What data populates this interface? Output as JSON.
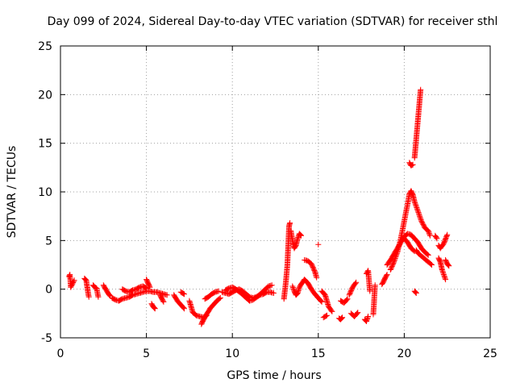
{
  "chart_data": {
    "type": "scatter",
    "title": "Day 099 of 2024, Sidereal Day-to-day VTEC variation (SDTVAR) for receiver sthl",
    "xlabel": "GPS time / hours",
    "ylabel": "SDTVAR / TECUs",
    "xlim": [
      0,
      25
    ],
    "ylim": [
      -5,
      25
    ],
    "xticks": [
      "0",
      "5",
      "10",
      "15",
      "20",
      "25"
    ],
    "yticks": [
      "-5",
      "0",
      "5",
      "10",
      "15",
      "20",
      "25"
    ],
    "grid": true,
    "marker": "plus",
    "color": "#ff0000",
    "series": [
      {
        "name": "SDTVAR",
        "segments": [
          [
            [
              0.5,
              1.3
            ],
            [
              0.55,
              1.5
            ],
            [
              0.6,
              0.2
            ],
            [
              0.8,
              0.9
            ]
          ],
          [
            [
              1.4,
              1.1
            ],
            [
              1.5,
              0.9
            ],
            [
              1.55,
              0.3
            ],
            [
              1.6,
              -0.3
            ],
            [
              1.65,
              -0.8
            ]
          ],
          [
            [
              1.9,
              0.4
            ],
            [
              2.0,
              0.2
            ],
            [
              2.1,
              0.1
            ],
            [
              2.2,
              -0.8
            ]
          ],
          [
            [
              2.5,
              0.4
            ],
            [
              2.6,
              0.1
            ],
            [
              2.7,
              -0.2
            ],
            [
              2.8,
              -0.5
            ],
            [
              2.9,
              -0.7
            ]
          ],
          [
            [
              3.0,
              -0.9
            ],
            [
              3.2,
              -1.1
            ],
            [
              3.4,
              -1.2
            ],
            [
              3.6,
              -1.0
            ],
            [
              3.8,
              -0.9
            ],
            [
              4.0,
              -0.8
            ],
            [
              4.2,
              -0.6
            ],
            [
              4.4,
              -0.5
            ],
            [
              4.6,
              -0.4
            ],
            [
              4.8,
              -0.3
            ],
            [
              5.0,
              -0.2
            ],
            [
              5.2,
              -0.2
            ],
            [
              5.4,
              -0.3
            ],
            [
              5.6,
              -0.3
            ],
            [
              5.8,
              -0.4
            ],
            [
              6.0,
              -0.5
            ],
            [
              6.2,
              -0.6
            ]
          ],
          [
            [
              3.6,
              0.0
            ],
            [
              3.8,
              -0.2
            ],
            [
              4.0,
              -0.3
            ],
            [
              4.2,
              -0.1
            ],
            [
              4.4,
              0.0
            ],
            [
              4.6,
              0.2
            ],
            [
              4.8,
              0.3
            ],
            [
              5.0,
              0.1
            ]
          ],
          [
            [
              5.0,
              1.0
            ],
            [
              5.1,
              0.6
            ],
            [
              5.2,
              0.2
            ]
          ],
          [
            [
              5.3,
              -1.5
            ],
            [
              5.4,
              -1.8
            ],
            [
              5.5,
              -2.0
            ]
          ],
          [
            [
              5.8,
              -0.6
            ],
            [
              5.9,
              -1.0
            ],
            [
              6.0,
              -1.3
            ]
          ],
          [
            [
              6.6,
              -0.6
            ],
            [
              6.8,
              -1.2
            ],
            [
              7.0,
              -1.6
            ],
            [
              7.2,
              -2.0
            ]
          ],
          [
            [
              7.0,
              -0.3
            ],
            [
              7.2,
              -0.5
            ]
          ],
          [
            [
              7.5,
              -1.2
            ],
            [
              7.7,
              -2.4
            ],
            [
              7.9,
              -2.7
            ],
            [
              8.1,
              -2.8
            ],
            [
              8.3,
              -2.9
            ],
            [
              8.5,
              -2.7
            ]
          ],
          [
            [
              8.2,
              -3.6
            ],
            [
              8.3,
              -3.2
            ],
            [
              8.5,
              -2.6
            ],
            [
              8.7,
              -2.0
            ],
            [
              8.9,
              -1.6
            ],
            [
              9.1,
              -1.2
            ],
            [
              9.3,
              -0.9
            ]
          ],
          [
            [
              8.4,
              -1.0
            ],
            [
              8.6,
              -0.8
            ],
            [
              8.8,
              -0.5
            ],
            [
              9.0,
              -0.3
            ],
            [
              9.2,
              -0.2
            ]
          ],
          [
            [
              9.4,
              -0.3
            ],
            [
              9.6,
              -0.4
            ],
            [
              9.8,
              -0.5
            ],
            [
              10.0,
              -0.3
            ],
            [
              10.2,
              -0.1
            ],
            [
              10.4,
              0.0
            ],
            [
              10.6,
              -0.2
            ],
            [
              10.8,
              -0.5
            ],
            [
              11.0,
              -0.8
            ],
            [
              11.2,
              -0.9
            ],
            [
              11.4,
              -0.8
            ],
            [
              11.6,
              -0.6
            ],
            [
              11.8,
              -0.5
            ],
            [
              12.0,
              -0.3
            ],
            [
              12.2,
              -0.3
            ],
            [
              12.4,
              -0.4
            ]
          ],
          [
            [
              9.6,
              -0.1
            ],
            [
              9.8,
              0.1
            ],
            [
              10.0,
              0.2
            ],
            [
              10.2,
              0.0
            ],
            [
              10.5,
              -0.4
            ],
            [
              10.8,
              -0.9
            ],
            [
              11.0,
              -1.2
            ],
            [
              11.2,
              -1.1
            ],
            [
              11.5,
              -0.7
            ],
            [
              11.8,
              -0.2
            ],
            [
              12.1,
              0.3
            ],
            [
              12.3,
              0.4
            ]
          ],
          [
            [
              13.0,
              -1.0
            ],
            [
              13.1,
              0.5
            ],
            [
              13.2,
              2.5
            ],
            [
              13.25,
              4.5
            ],
            [
              13.3,
              6.5
            ],
            [
              13.35,
              6.8
            ]
          ],
          [
            [
              13.4,
              6.0
            ],
            [
              13.5,
              5.0
            ],
            [
              13.6,
              4.2
            ],
            [
              13.7,
              4.5
            ],
            [
              13.8,
              5.2
            ],
            [
              13.9,
              5.7
            ],
            [
              14.0,
              5.5
            ]
          ],
          [
            [
              13.5,
              0.3
            ],
            [
              13.6,
              -0.2
            ],
            [
              13.7,
              -0.6
            ],
            [
              13.8,
              -0.4
            ],
            [
              13.9,
              0.2
            ],
            [
              14.0,
              0.5
            ],
            [
              14.2,
              1.0
            ],
            [
              14.4,
              0.6
            ],
            [
              14.6,
              0.0
            ],
            [
              14.8,
              -0.5
            ],
            [
              15.0,
              -0.9
            ],
            [
              15.2,
              -1.3
            ]
          ],
          [
            [
              14.2,
              3.0
            ],
            [
              14.4,
              2.9
            ],
            [
              14.6,
              2.6
            ],
            [
              14.8,
              1.8
            ],
            [
              14.9,
              1.2
            ]
          ],
          [
            [
              15.0,
              4.6
            ]
          ],
          [
            [
              15.2,
              -0.2
            ],
            [
              15.4,
              -0.6
            ],
            [
              15.5,
              -1.2
            ],
            [
              15.6,
              -1.8
            ],
            [
              15.8,
              -2.3
            ]
          ],
          [
            [
              15.3,
              -2.9
            ],
            [
              15.5,
              -2.7
            ]
          ],
          [
            [
              16.2,
              -3.0
            ],
            [
              16.3,
              -3.1
            ],
            [
              16.4,
              -2.9
            ]
          ],
          [
            [
              16.3,
              -1.2
            ],
            [
              16.5,
              -1.4
            ],
            [
              16.7,
              -1.0
            ]
          ],
          [
            [
              16.8,
              -0.6
            ],
            [
              17.0,
              0.2
            ],
            [
              17.2,
              0.7
            ]
          ],
          [
            [
              16.9,
              -2.5
            ],
            [
              17.1,
              -2.8
            ],
            [
              17.3,
              -2.4
            ]
          ],
          [
            [
              17.7,
              -3.1
            ],
            [
              17.8,
              -3.3
            ],
            [
              17.9,
              -2.8
            ]
          ],
          [
            [
              17.8,
              1.6
            ],
            [
              17.9,
              1.9
            ],
            [
              18.0,
              -0.2
            ]
          ],
          [
            [
              18.2,
              -2.6
            ],
            [
              18.3,
              0.4
            ]
          ],
          [
            [
              18.7,
              0.5
            ],
            [
              18.8,
              0.8
            ],
            [
              18.9,
              1.2
            ],
            [
              19.0,
              1.5
            ]
          ],
          [
            [
              19.0,
              2.5
            ],
            [
              19.2,
              3.0
            ],
            [
              19.4,
              3.6
            ],
            [
              19.6,
              4.2
            ],
            [
              19.8,
              4.8
            ],
            [
              20.0,
              5.4
            ],
            [
              20.2,
              5.7
            ],
            [
              20.4,
              5.6
            ],
            [
              20.6,
              5.2
            ],
            [
              20.8,
              4.8
            ],
            [
              21.0,
              4.2
            ],
            [
              21.2,
              3.8
            ],
            [
              21.4,
              3.5
            ]
          ],
          [
            [
              19.2,
              2.0
            ],
            [
              19.4,
              2.8
            ],
            [
              19.6,
              3.8
            ],
            [
              19.8,
              5.2
            ],
            [
              20.0,
              7.0
            ],
            [
              20.2,
              8.8
            ],
            [
              20.3,
              9.8
            ],
            [
              20.4,
              10.1
            ],
            [
              20.5,
              9.7
            ],
            [
              20.6,
              9.0
            ],
            [
              20.8,
              8.0
            ],
            [
              21.0,
              7.0
            ],
            [
              21.2,
              6.3
            ],
            [
              21.4,
              6.0
            ],
            [
              21.5,
              5.5
            ]
          ],
          [
            [
              20.0,
              5.2
            ],
            [
              20.2,
              4.8
            ],
            [
              20.4,
              4.2
            ],
            [
              20.6,
              3.9
            ]
          ],
          [
            [
              20.3,
              13.0
            ],
            [
              20.4,
              12.7
            ],
            [
              20.5,
              12.8
            ]
          ],
          [
            [
              20.6,
              13.5
            ],
            [
              20.65,
              14.5
            ],
            [
              20.7,
              15.5
            ],
            [
              20.75,
              16.5
            ],
            [
              20.8,
              17.5
            ],
            [
              20.85,
              18.5
            ],
            [
              20.9,
              19.5
            ],
            [
              20.95,
              20.5
            ]
          ],
          [
            [
              20.6,
              -0.2
            ],
            [
              20.7,
              -0.4
            ]
          ],
          [
            [
              20.7,
              4.0
            ],
            [
              20.8,
              3.7
            ],
            [
              21.0,
              3.4
            ],
            [
              21.2,
              3.1
            ],
            [
              21.4,
              2.8
            ],
            [
              21.6,
              2.5
            ]
          ],
          [
            [
              21.8,
              5.5
            ],
            [
              21.9,
              5.2
            ]
          ],
          [
            [
              22.0,
              4.5
            ],
            [
              22.1,
              4.2
            ],
            [
              22.3,
              4.7
            ],
            [
              22.5,
              5.6
            ]
          ],
          [
            [
              22.0,
              3.2
            ],
            [
              22.1,
              2.8
            ],
            [
              22.2,
              2.0
            ],
            [
              22.3,
              1.5
            ],
            [
              22.4,
              1.0
            ]
          ],
          [
            [
              22.4,
              3.0
            ],
            [
              22.5,
              2.6
            ],
            [
              22.6,
              2.4
            ]
          ]
        ]
      }
    ]
  }
}
